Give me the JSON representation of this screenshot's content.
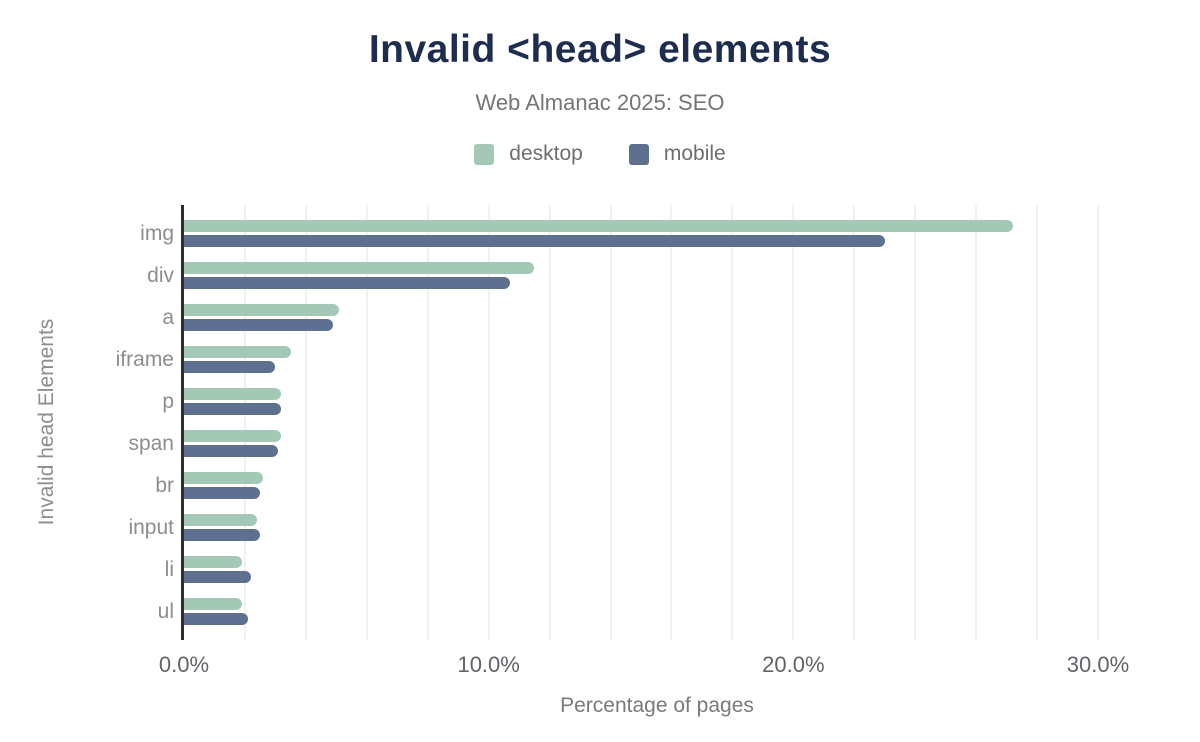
{
  "header": {
    "title": "Invalid <head> elements",
    "subtitle": "Web Almanac 2025: SEO"
  },
  "colors": {
    "title": "#1e2d4f",
    "desktop": "#a4c8b6",
    "mobile": "#5e7090",
    "axis_line": "#2d2d2d",
    "gridline": "#f1f1f1"
  },
  "chart_data": {
    "type": "bar",
    "orientation": "horizontal",
    "title": "Invalid <head> elements",
    "subtitle": "Web Almanac 2025: SEO",
    "categories": [
      "img",
      "div",
      "a",
      "iframe",
      "p",
      "span",
      "br",
      "input",
      "li",
      "ul"
    ],
    "series": [
      {
        "name": "desktop",
        "color": "#a4c8b6",
        "values": [
          27.2,
          11.5,
          5.1,
          3.5,
          3.2,
          3.2,
          2.6,
          2.4,
          1.9,
          1.9
        ]
      },
      {
        "name": "mobile",
        "color": "#5e7090",
        "values": [
          23.0,
          10.7,
          4.9,
          3.0,
          3.2,
          3.1,
          2.5,
          2.5,
          2.2,
          2.1
        ]
      }
    ],
    "xlabel": "Percentage of pages",
    "ylabel": "Invalid head Elements",
    "x_ticks": [
      {
        "label": "0.0%",
        "value": 0
      },
      {
        "label": "10.0%",
        "value": 10
      },
      {
        "label": "20.0%",
        "value": 20
      },
      {
        "label": "30.0%",
        "value": 30
      }
    ],
    "xlim": [
      0,
      31.05
    ],
    "gridline_step": 2,
    "grid": true,
    "legend_position": "top",
    "value_unit": "%"
  }
}
